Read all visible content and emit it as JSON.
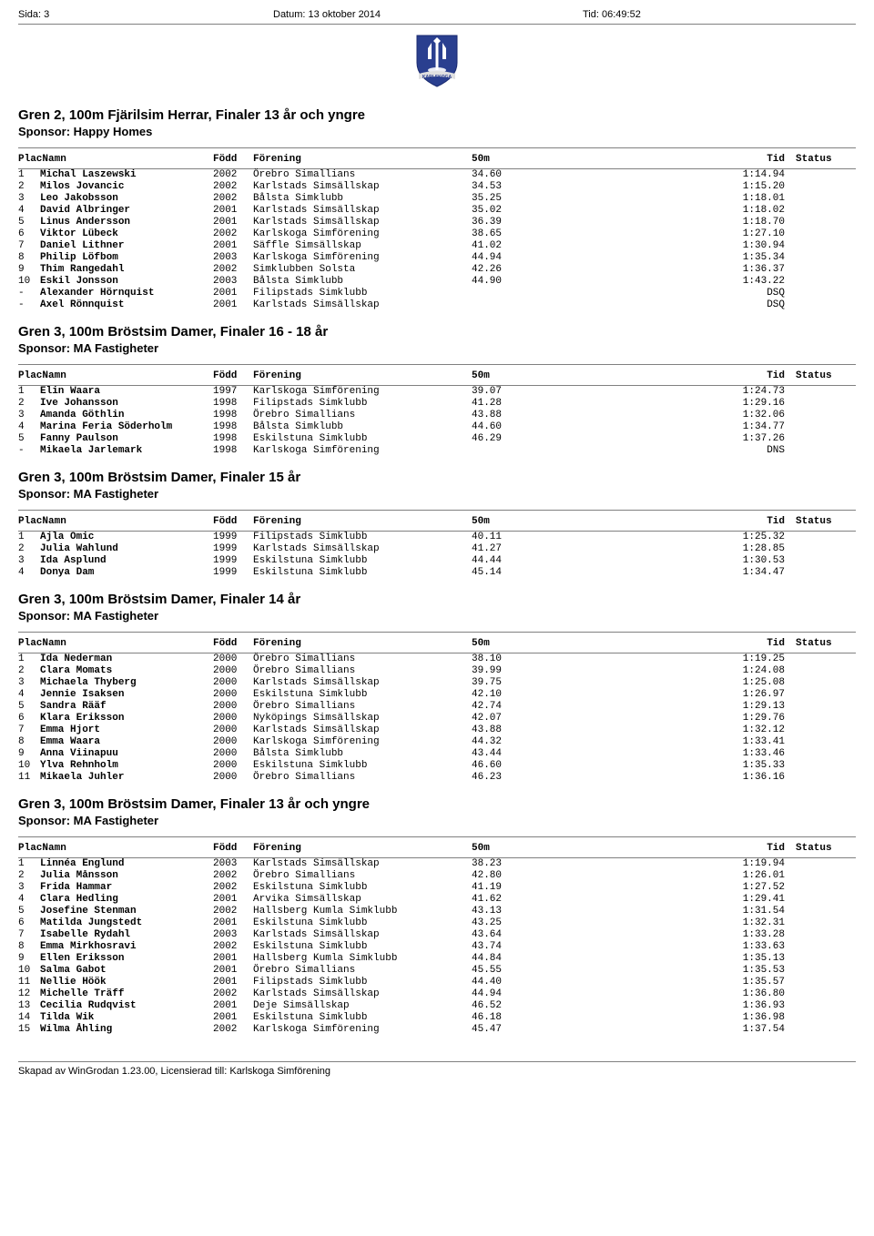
{
  "page_header": {
    "left_label": "Sida:",
    "left_value": "3",
    "center_label": "Datum:",
    "center_value": "13 oktober 2014",
    "right_label": "Tid:",
    "right_value": "06:49:52"
  },
  "logo": {
    "shield_fill": "#2a3f8f",
    "trident_fill": "#ffffff",
    "banner_fill": "#e0e0e0",
    "text": "KARLSKOGA"
  },
  "columns": {
    "placnamn": "PlacNamn",
    "fodd": "Född",
    "forening": "Förening",
    "m50": "50m",
    "tid": "Tid",
    "status": "Status"
  },
  "events": [
    {
      "title": "Gren 2, 100m Fjärilsim Herrar, Finaler 13 år och yngre",
      "sponsor": "Sponsor: Happy Homes",
      "rows": [
        {
          "plac": "1",
          "namn": "Michal Laszewski",
          "fodd": "2002",
          "forening": "Örebro Simallians",
          "m50": "34.60",
          "tid": "1:14.94",
          "status": ""
        },
        {
          "plac": "2",
          "namn": "Milos Jovancic",
          "fodd": "2002",
          "forening": "Karlstads Simsällskap",
          "m50": "34.53",
          "tid": "1:15.20",
          "status": ""
        },
        {
          "plac": "3",
          "namn": "Leo Jakobsson",
          "fodd": "2002",
          "forening": "Bålsta Simklubb",
          "m50": "35.25",
          "tid": "1:18.01",
          "status": ""
        },
        {
          "plac": "4",
          "namn": "David Albringer",
          "fodd": "2001",
          "forening": "Karlstads Simsällskap",
          "m50": "35.02",
          "tid": "1:18.02",
          "status": ""
        },
        {
          "plac": "5",
          "namn": "Linus Andersson",
          "fodd": "2001",
          "forening": "Karlstads Simsällskap",
          "m50": "36.39",
          "tid": "1:18.70",
          "status": ""
        },
        {
          "plac": "6",
          "namn": "Viktor Lübeck",
          "fodd": "2002",
          "forening": "Karlskoga Simförening",
          "m50": "38.65",
          "tid": "1:27.10",
          "status": ""
        },
        {
          "plac": "7",
          "namn": "Daniel Lithner",
          "fodd": "2001",
          "forening": "Säffle Simsällskap",
          "m50": "41.02",
          "tid": "1:30.94",
          "status": ""
        },
        {
          "plac": "8",
          "namn": "Philip Löfbom",
          "fodd": "2003",
          "forening": "Karlskoga Simförening",
          "m50": "44.94",
          "tid": "1:35.34",
          "status": ""
        },
        {
          "plac": "9",
          "namn": "Thim Rangedahl",
          "fodd": "2002",
          "forening": "Simklubben Solsta",
          "m50": "42.26",
          "tid": "1:36.37",
          "status": ""
        },
        {
          "plac": "10",
          "namn": "Eskil Jonsson",
          "fodd": "2003",
          "forening": "Bålsta Simklubb",
          "m50": "44.90",
          "tid": "1:43.22",
          "status": ""
        },
        {
          "plac": "-",
          "namn": "Alexander Hörnquist",
          "fodd": "2001",
          "forening": "Filipstads Simklubb",
          "m50": "",
          "tid": "DSQ",
          "status": ""
        },
        {
          "plac": "-",
          "namn": "Axel Rönnquist",
          "fodd": "2001",
          "forening": "Karlstads Simsällskap",
          "m50": "",
          "tid": "DSQ",
          "status": ""
        }
      ]
    },
    {
      "title": "Gren 3, 100m Bröstsim Damer, Finaler 16 - 18 år",
      "sponsor": "Sponsor: MA Fastigheter",
      "rows": [
        {
          "plac": "1",
          "namn": "Elin Waara",
          "fodd": "1997",
          "forening": "Karlskoga Simförening",
          "m50": "39.07",
          "tid": "1:24.73",
          "status": ""
        },
        {
          "plac": "2",
          "namn": "Ive Johansson",
          "fodd": "1998",
          "forening": "Filipstads Simklubb",
          "m50": "41.28",
          "tid": "1:29.16",
          "status": ""
        },
        {
          "plac": "3",
          "namn": "Amanda Göthlin",
          "fodd": "1998",
          "forening": "Örebro Simallians",
          "m50": "43.88",
          "tid": "1:32.06",
          "status": ""
        },
        {
          "plac": "4",
          "namn": "Marina Feria Söderholm",
          "fodd": "1998",
          "forening": "Bålsta Simklubb",
          "m50": "44.60",
          "tid": "1:34.77",
          "status": ""
        },
        {
          "plac": "5",
          "namn": "Fanny Paulson",
          "fodd": "1998",
          "forening": "Eskilstuna Simklubb",
          "m50": "46.29",
          "tid": "1:37.26",
          "status": ""
        },
        {
          "plac": "-",
          "namn": "Mikaela Jarlemark",
          "fodd": "1998",
          "forening": "Karlskoga Simförening",
          "m50": "",
          "tid": "DNS",
          "status": ""
        }
      ]
    },
    {
      "title": "Gren 3, 100m Bröstsim Damer, Finaler 15 år",
      "sponsor": "Sponsor: MA Fastigheter",
      "rows": [
        {
          "plac": "1",
          "namn": "Ajla Omic",
          "fodd": "1999",
          "forening": "Filipstads Simklubb",
          "m50": "40.11",
          "tid": "1:25.32",
          "status": ""
        },
        {
          "plac": "2",
          "namn": "Julia Wahlund",
          "fodd": "1999",
          "forening": "Karlstads Simsällskap",
          "m50": "41.27",
          "tid": "1:28.85",
          "status": ""
        },
        {
          "plac": "3",
          "namn": "Ida Asplund",
          "fodd": "1999",
          "forening": "Eskilstuna Simklubb",
          "m50": "44.44",
          "tid": "1:30.53",
          "status": ""
        },
        {
          "plac": "4",
          "namn": "Donya Dam",
          "fodd": "1999",
          "forening": "Eskilstuna Simklubb",
          "m50": "45.14",
          "tid": "1:34.47",
          "status": ""
        }
      ]
    },
    {
      "title": "Gren 3, 100m Bröstsim Damer, Finaler 14 år",
      "sponsor": "Sponsor: MA Fastigheter",
      "rows": [
        {
          "plac": "1",
          "namn": "Ida Nederman",
          "fodd": "2000",
          "forening": "Örebro Simallians",
          "m50": "38.10",
          "tid": "1:19.25",
          "status": ""
        },
        {
          "plac": "2",
          "namn": "Clara Momats",
          "fodd": "2000",
          "forening": "Örebro Simallians",
          "m50": "39.99",
          "tid": "1:24.08",
          "status": ""
        },
        {
          "plac": "3",
          "namn": "Michaela Thyberg",
          "fodd": "2000",
          "forening": "Karlstads Simsällskap",
          "m50": "39.75",
          "tid": "1:25.08",
          "status": ""
        },
        {
          "plac": "4",
          "namn": "Jennie Isaksen",
          "fodd": "2000",
          "forening": "Eskilstuna Simklubb",
          "m50": "42.10",
          "tid": "1:26.97",
          "status": ""
        },
        {
          "plac": "5",
          "namn": "Sandra Rääf",
          "fodd": "2000",
          "forening": "Örebro Simallians",
          "m50": "42.74",
          "tid": "1:29.13",
          "status": ""
        },
        {
          "plac": "6",
          "namn": "Klara Eriksson",
          "fodd": "2000",
          "forening": "Nyköpings Simsällskap",
          "m50": "42.07",
          "tid": "1:29.76",
          "status": ""
        },
        {
          "plac": "7",
          "namn": "Emma Hjort",
          "fodd": "2000",
          "forening": "Karlstads Simsällskap",
          "m50": "43.88",
          "tid": "1:32.12",
          "status": ""
        },
        {
          "plac": "8",
          "namn": "Emma Waara",
          "fodd": "2000",
          "forening": "Karlskoga Simförening",
          "m50": "44.32",
          "tid": "1:33.41",
          "status": ""
        },
        {
          "plac": "9",
          "namn": "Anna Viinapuu",
          "fodd": "2000",
          "forening": "Bålsta Simklubb",
          "m50": "43.44",
          "tid": "1:33.46",
          "status": ""
        },
        {
          "plac": "10",
          "namn": "Ylva Rehnholm",
          "fodd": "2000",
          "forening": "Eskilstuna Simklubb",
          "m50": "46.60",
          "tid": "1:35.33",
          "status": ""
        },
        {
          "plac": "11",
          "namn": "Mikaela Juhler",
          "fodd": "2000",
          "forening": "Örebro Simallians",
          "m50": "46.23",
          "tid": "1:36.16",
          "status": ""
        }
      ]
    },
    {
      "title": "Gren 3, 100m Bröstsim Damer, Finaler 13 år och yngre",
      "sponsor": "Sponsor: MA Fastigheter",
      "rows": [
        {
          "plac": "1",
          "namn": "Linnéa Englund",
          "fodd": "2003",
          "forening": "Karlstads Simsällskap",
          "m50": "38.23",
          "tid": "1:19.94",
          "status": ""
        },
        {
          "plac": "2",
          "namn": "Julia Månsson",
          "fodd": "2002",
          "forening": "Örebro Simallians",
          "m50": "42.80",
          "tid": "1:26.01",
          "status": ""
        },
        {
          "plac": "3",
          "namn": "Frida Hammar",
          "fodd": "2002",
          "forening": "Eskilstuna Simklubb",
          "m50": "41.19",
          "tid": "1:27.52",
          "status": ""
        },
        {
          "plac": "4",
          "namn": "Clara Hedling",
          "fodd": "2001",
          "forening": "Arvika Simsällskap",
          "m50": "41.62",
          "tid": "1:29.41",
          "status": ""
        },
        {
          "plac": "5",
          "namn": "Josefine Stenman",
          "fodd": "2002",
          "forening": "Hallsberg Kumla Simklubb",
          "m50": "43.13",
          "tid": "1:31.54",
          "status": ""
        },
        {
          "plac": "6",
          "namn": "Matilda Jungstedt",
          "fodd": "2001",
          "forening": "Eskilstuna Simklubb",
          "m50": "43.25",
          "tid": "1:32.31",
          "status": ""
        },
        {
          "plac": "7",
          "namn": "Isabelle Rydahl",
          "fodd": "2003",
          "forening": "Karlstads Simsällskap",
          "m50": "43.64",
          "tid": "1:33.28",
          "status": ""
        },
        {
          "plac": "8",
          "namn": "Emma Mirkhosravi",
          "fodd": "2002",
          "forening": "Eskilstuna Simklubb",
          "m50": "43.74",
          "tid": "1:33.63",
          "status": ""
        },
        {
          "plac": "9",
          "namn": "Ellen Eriksson",
          "fodd": "2001",
          "forening": "Hallsberg Kumla Simklubb",
          "m50": "44.84",
          "tid": "1:35.13",
          "status": ""
        },
        {
          "plac": "10",
          "namn": "Salma Gabot",
          "fodd": "2001",
          "forening": "Örebro Simallians",
          "m50": "45.55",
          "tid": "1:35.53",
          "status": ""
        },
        {
          "plac": "11",
          "namn": "Nellie Höök",
          "fodd": "2001",
          "forening": "Filipstads Simklubb",
          "m50": "44.40",
          "tid": "1:35.57",
          "status": ""
        },
        {
          "plac": "12",
          "namn": "Michelle Träff",
          "fodd": "2002",
          "forening": "Karlstads Simsällskap",
          "m50": "44.94",
          "tid": "1:36.80",
          "status": ""
        },
        {
          "plac": "13",
          "namn": "Cecilia Rudqvist",
          "fodd": "2001",
          "forening": "Deje Simsällskap",
          "m50": "46.52",
          "tid": "1:36.93",
          "status": ""
        },
        {
          "plac": "14",
          "namn": "Tilda Wik",
          "fodd": "2001",
          "forening": "Eskilstuna Simklubb",
          "m50": "46.18",
          "tid": "1:36.98",
          "status": ""
        },
        {
          "plac": "15",
          "namn": "Wilma Åhling",
          "fodd": "2002",
          "forening": "Karlskoga Simförening",
          "m50": "45.47",
          "tid": "1:37.54",
          "status": ""
        }
      ]
    }
  ],
  "footer": "Skapad av WinGrodan 1.23.00, Licensierad till: Karlskoga Simförening"
}
